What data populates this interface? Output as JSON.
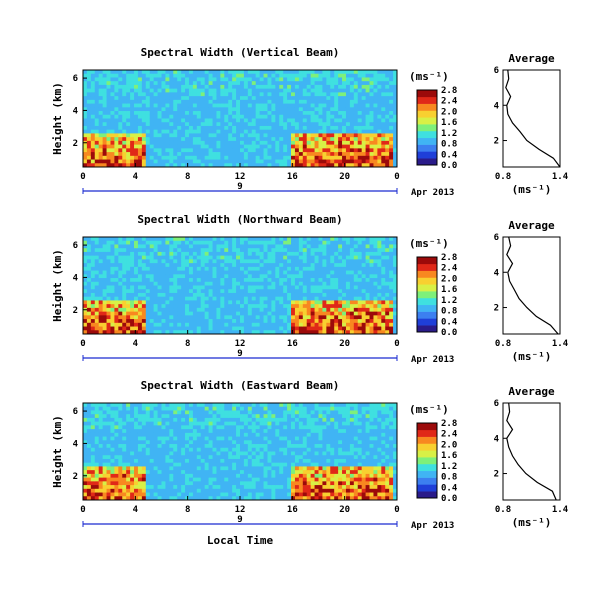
{
  "chart_data": [
    {
      "type": "heatmap",
      "title": "Spectral Width (Vertical Beam)",
      "ylabel": "Height (km)",
      "xlabel": "",
      "x_ticks": [
        "0",
        "4",
        "8",
        "12",
        "16",
        "20",
        "0"
      ],
      "y_ticks": [
        "2",
        "4",
        "6"
      ],
      "date_axis": {
        "day": "9",
        "month_label": "Apr 2013"
      },
      "colorbar": {
        "unit": "(ms⁻¹)",
        "ticks": [
          "0.0",
          "0.4",
          "0.8",
          "1.2",
          "1.6",
          "2.0",
          "2.4",
          "2.8"
        ]
      },
      "profile": {
        "title": "Average",
        "xlabel": "(ms⁻¹)",
        "x_ticks": [
          "0.8",
          "1.4"
        ],
        "y_ticks": [
          "2",
          "4",
          "6"
        ],
        "xlim": [
          0.8,
          1.4
        ],
        "ylim": [
          0.5,
          6
        ],
        "heights": [
          0.5,
          1.0,
          1.5,
          2.0,
          2.5,
          3.0,
          3.5,
          4.0,
          4.5,
          5.0,
          5.5,
          6.0
        ],
        "values": [
          1.4,
          1.33,
          1.18,
          1.05,
          0.98,
          0.9,
          0.85,
          0.84,
          0.88,
          0.83,
          0.86,
          0.85
        ]
      }
    },
    {
      "type": "heatmap",
      "title": "Spectral Width (Northward Beam)",
      "ylabel": "Height (km)",
      "xlabel": "",
      "x_ticks": [
        "0",
        "4",
        "8",
        "12",
        "16",
        "20",
        "0"
      ],
      "y_ticks": [
        "2",
        "4",
        "6"
      ],
      "date_axis": {
        "day": "9",
        "month_label": "Apr 2013"
      },
      "colorbar": {
        "unit": "(ms⁻¹)",
        "ticks": [
          "0.0",
          "0.4",
          "0.8",
          "1.2",
          "1.6",
          "2.0",
          "2.4",
          "2.8"
        ]
      },
      "profile": {
        "title": "Average",
        "xlabel": "(ms⁻¹)",
        "x_ticks": [
          "0.8",
          "1.4"
        ],
        "y_ticks": [
          "2",
          "4",
          "6"
        ],
        "xlim": [
          0.8,
          1.4
        ],
        "ylim": [
          0.5,
          6
        ],
        "heights": [
          0.5,
          1.0,
          1.5,
          2.0,
          2.5,
          3.0,
          3.5,
          4.0,
          4.5,
          5.0,
          5.5,
          6.0
        ],
        "values": [
          1.38,
          1.3,
          1.15,
          1.05,
          0.97,
          0.92,
          0.87,
          0.85,
          0.9,
          0.84,
          0.88,
          0.86
        ]
      }
    },
    {
      "type": "heatmap",
      "title": "Spectral Width (Eastward Beam)",
      "ylabel": "Height (km)",
      "xlabel": "Local Time",
      "x_ticks": [
        "0",
        "4",
        "8",
        "12",
        "16",
        "20",
        "0"
      ],
      "y_ticks": [
        "2",
        "4",
        "6"
      ],
      "date_axis": {
        "day": "9",
        "month_label": "Apr 2013"
      },
      "colorbar": {
        "unit": "(ms⁻¹)",
        "ticks": [
          "0.0",
          "0.4",
          "0.8",
          "1.2",
          "1.6",
          "2.0",
          "2.4",
          "2.8"
        ]
      },
      "profile": {
        "title": "Average",
        "xlabel": "(ms⁻¹)",
        "x_ticks": [
          "0.8",
          "1.4"
        ],
        "y_ticks": [
          "2",
          "4",
          "6"
        ],
        "xlim": [
          0.8,
          1.4
        ],
        "ylim": [
          0.5,
          6
        ],
        "heights": [
          0.5,
          1.0,
          1.5,
          2.0,
          2.5,
          3.0,
          3.5,
          4.0,
          4.5,
          5.0,
          5.5,
          6.0
        ],
        "values": [
          1.36,
          1.32,
          1.16,
          1.04,
          0.96,
          0.9,
          0.86,
          0.84,
          0.9,
          0.84,
          0.87,
          0.86
        ]
      }
    }
  ],
  "colors": {
    "colormap": [
      "#2a1b8a",
      "#1f3fd8",
      "#3c7ff0",
      "#40b4f4",
      "#3fe0e0",
      "#7ef07a",
      "#d8f046",
      "#f8d030",
      "#f88820",
      "#e02818",
      "#9c0a0a"
    ],
    "background": "#3d7df3",
    "axis": "#000000",
    "date_axis": "#1a2bd0"
  }
}
